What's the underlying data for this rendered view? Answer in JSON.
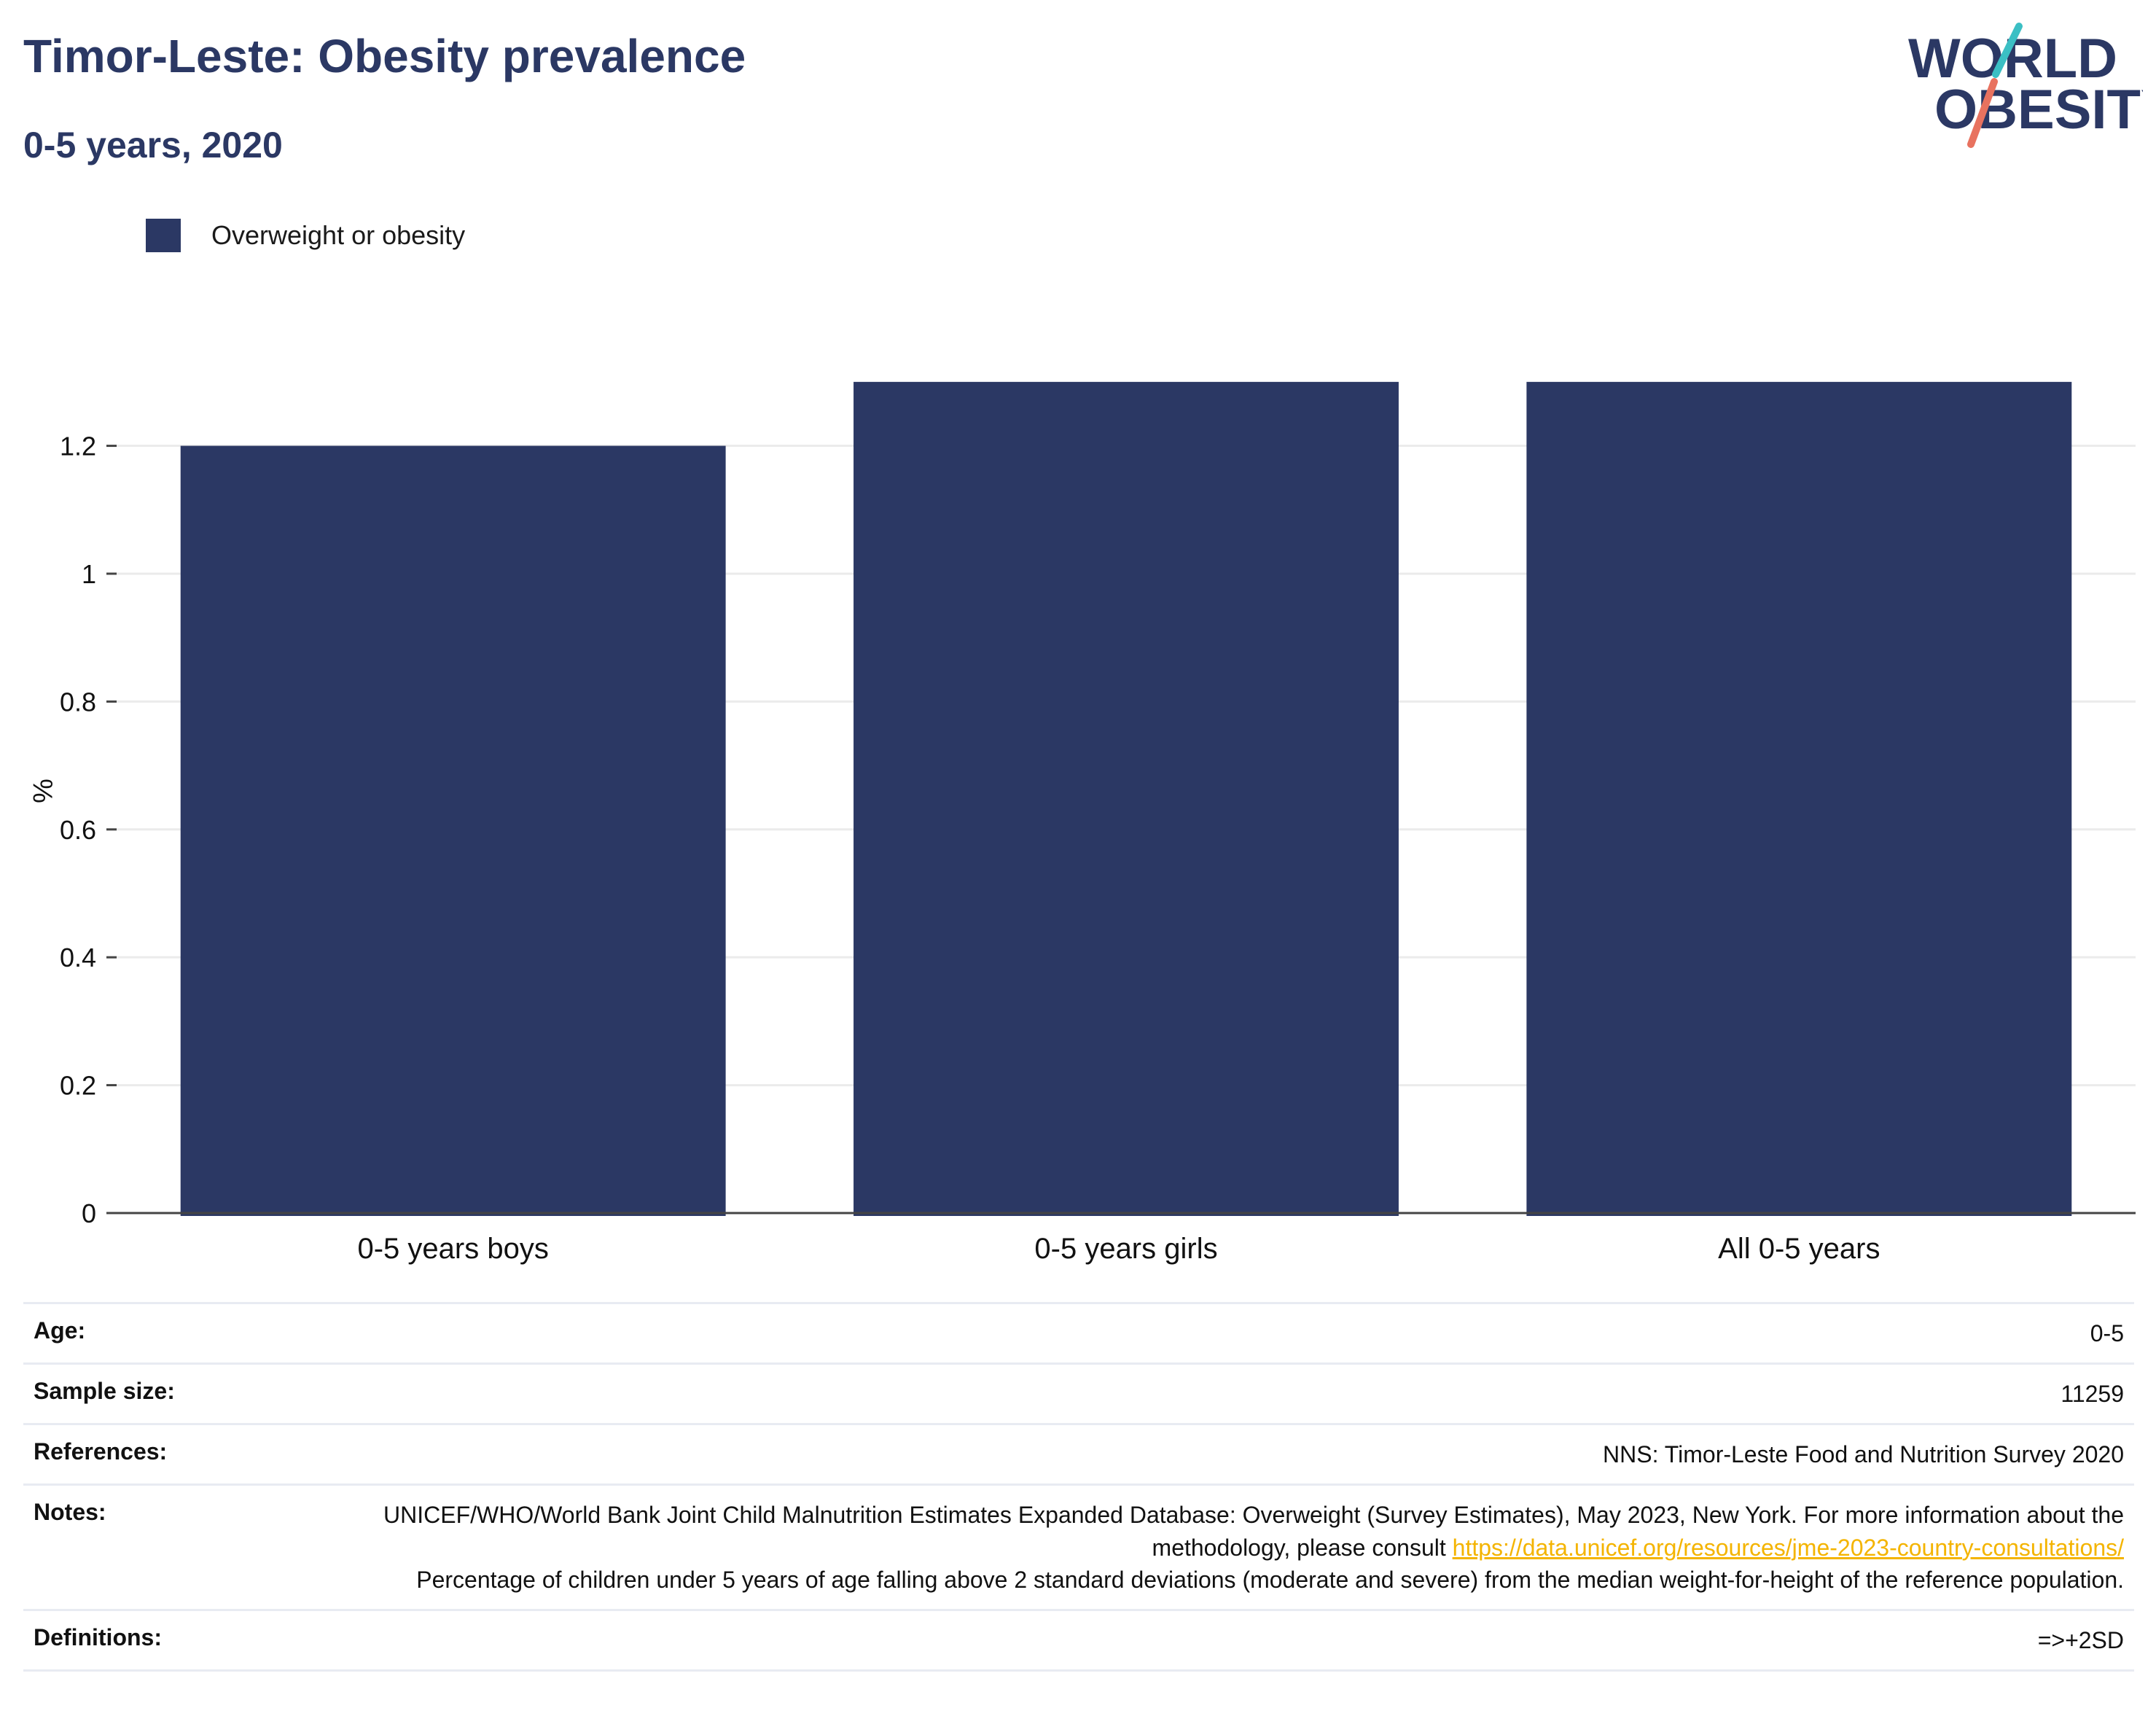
{
  "header": {
    "title": "Timor-Leste: Obesity prevalence",
    "subtitle": "0-5 years, 2020"
  },
  "logo": {
    "line1": "WORLD",
    "line2": "OBESITY",
    "colors": {
      "text": "#2b3864",
      "slash_top": "#3bbfc4",
      "slash_bottom": "#e8725f"
    }
  },
  "legend": {
    "items": [
      {
        "label": "Overweight or obesity",
        "color": "#2b3864"
      }
    ]
  },
  "chart_data": {
    "type": "bar",
    "categories": [
      "0-5 years boys",
      "0-5 years girls",
      "All 0-5 years"
    ],
    "series": [
      {
        "name": "Overweight or obesity",
        "values": [
          1.2,
          1.3,
          1.3
        ],
        "color": "#2b3864"
      }
    ],
    "ylabel": "%",
    "xlabel": "",
    "ylim": [
      0,
      1.35
    ],
    "yticks": [
      0,
      0.2,
      0.4,
      0.6,
      0.8,
      1,
      1.2
    ],
    "ytick_labels": [
      "0",
      "0.2",
      "0.4",
      "0.6",
      "0.8",
      "1",
      "1.2"
    ],
    "grid": true,
    "legend_position": "top-left"
  },
  "meta": {
    "age": {
      "label": "Age:",
      "value": "0-5"
    },
    "sample_size": {
      "label": "Sample size:",
      "value": "11259"
    },
    "references": {
      "label": "References:",
      "value": "NNS: Timor-Leste Food and Nutrition Survey 2020"
    },
    "notes": {
      "label": "Notes:",
      "text_before_link": "UNICEF/WHO/World Bank Joint Child Malnutrition Estimates Expanded Database: Overweight (Survey Estimates), May 2023, New York. For more information about the methodology, please consult ",
      "link": "https://data.unicef.org/resources/jme-2023-country-consultations/",
      "text_after_link": "Percentage of children under 5 years of age falling above 2 standard deviations (moderate and severe) from the median weight-for-height of the reference population."
    },
    "definitions": {
      "label": "Definitions:",
      "value": "=>+2SD"
    }
  }
}
